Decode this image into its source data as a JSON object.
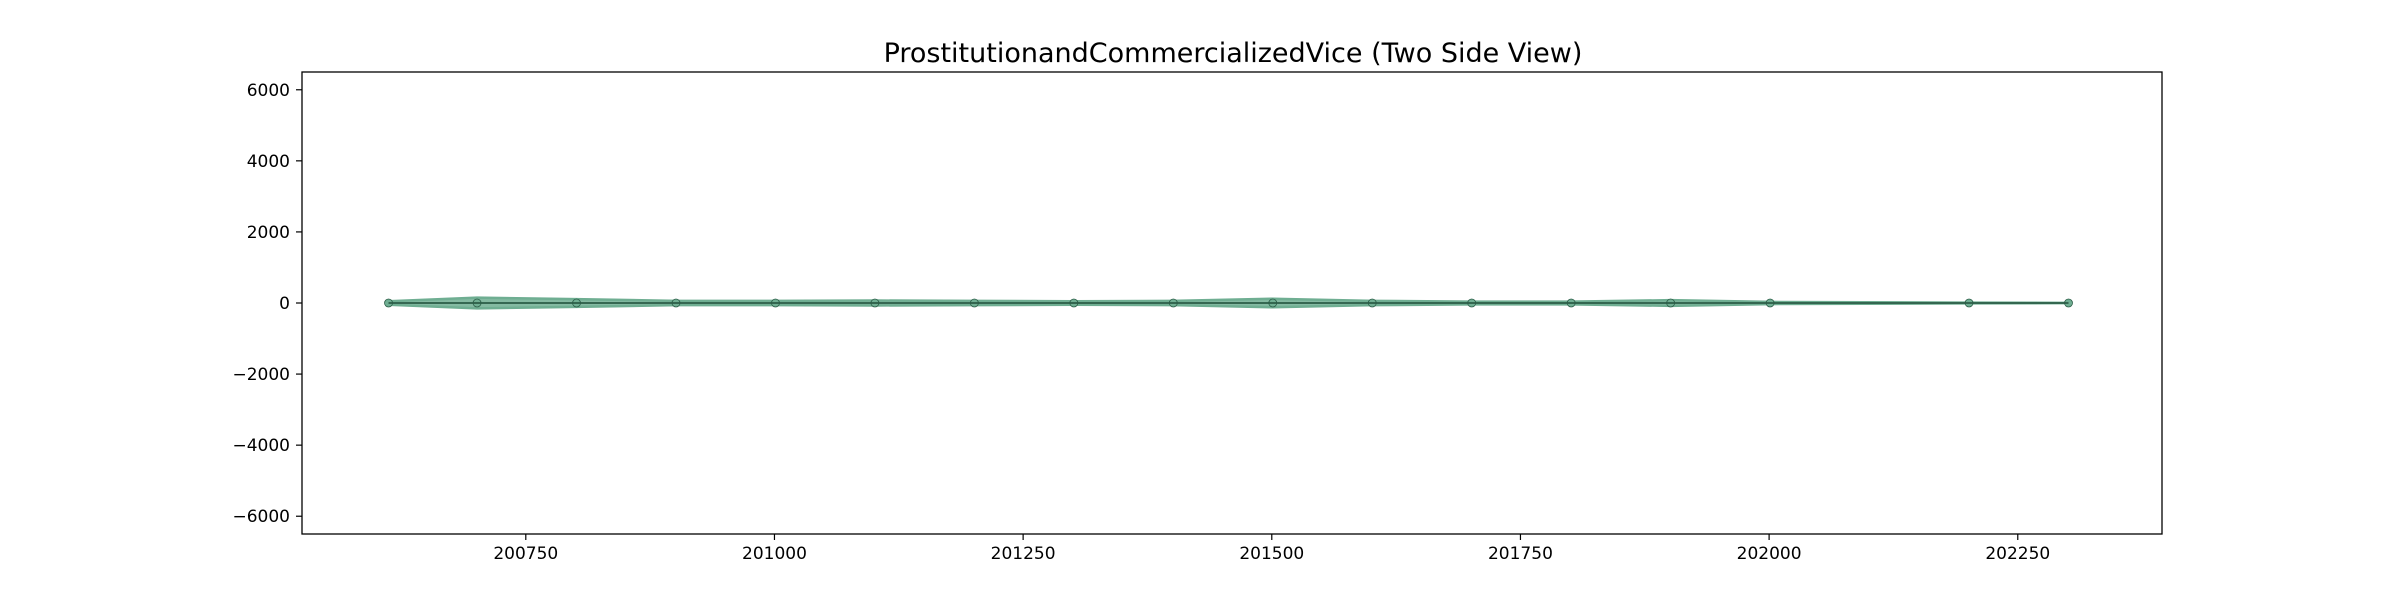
{
  "chart_data": {
    "type": "area",
    "title": "ProstitutionandCommercializedVice (Two Side View)",
    "xlabel": "",
    "ylabel": "",
    "xlim": [
      200525,
      202395
    ],
    "ylim": [
      -6500,
      6500
    ],
    "xticks": [
      200750,
      201000,
      201250,
      201500,
      201750,
      202000,
      202250
    ],
    "xtick_labels": [
      "200750",
      "201000",
      "201250",
      "201500",
      "201750",
      "202000",
      "202250"
    ],
    "yticks": [
      6000,
      4000,
      2000,
      0,
      -2000,
      -4000,
      -6000
    ],
    "ytick_labels": [
      "6000",
      "4000",
      "2000",
      "0",
      "−2000",
      "−4000",
      "−6000"
    ],
    "grid": false,
    "legend": "none",
    "colors": {
      "fill": "#6fae92",
      "line": "#2b5d47"
    },
    "x": [
      200612,
      200701,
      200801,
      200901,
      201001,
      201101,
      201201,
      201301,
      201401,
      201501,
      201601,
      201701,
      201801,
      201901,
      202001,
      202201,
      202301
    ],
    "values": [
      50,
      150,
      110,
      60,
      60,
      70,
      60,
      50,
      60,
      120,
      60,
      40,
      40,
      80,
      30,
      10,
      5
    ]
  }
}
